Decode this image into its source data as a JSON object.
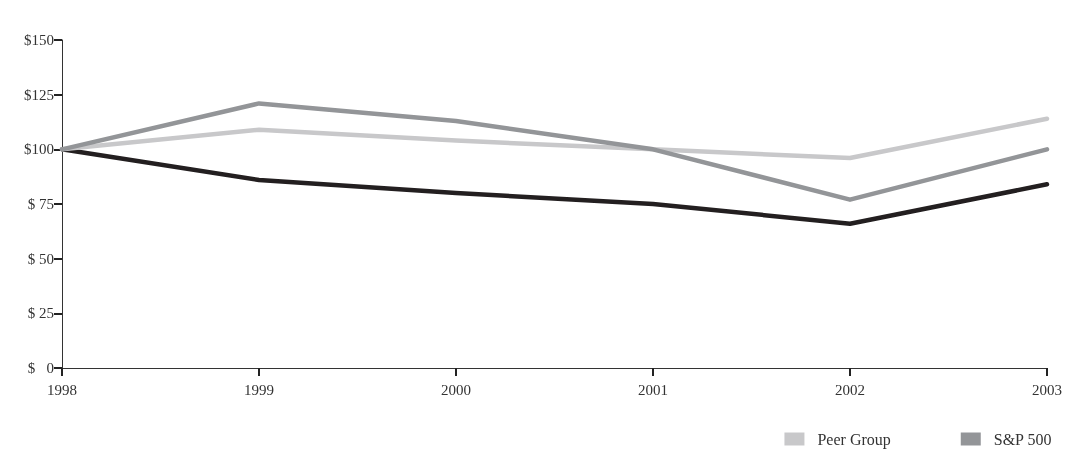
{
  "chart_data": {
    "type": "line",
    "categories": [
      "1998",
      "1999",
      "2000",
      "2001",
      "2002",
      "2003"
    ],
    "series": [
      {
        "color": "#231f20",
        "values": [
          100,
          86,
          80,
          75,
          66,
          84
        ]
      },
      {
        "name": "Peer Group",
        "color": "#c8c8ca",
        "values": [
          100,
          109,
          104,
          100,
          96,
          114
        ]
      },
      {
        "name": "S&P 500",
        "color": "#939598",
        "values": [
          100,
          121,
          113,
          100,
          77,
          100
        ]
      }
    ],
    "ylim": [
      0,
      150
    ],
    "yticks": [
      {
        "value": 0,
        "label": "$   0"
      },
      {
        "value": 25,
        "label": "$ 25"
      },
      {
        "value": 50,
        "label": "$ 50"
      },
      {
        "value": 75,
        "label": "$ 75"
      },
      {
        "value": 100,
        "label": "$100"
      },
      {
        "value": 125,
        "label": "$125"
      },
      {
        "value": 150,
        "label": "$150"
      }
    ],
    "grid": false,
    "legend": "bottom right",
    "marker": "none",
    "line_style": "solid"
  }
}
